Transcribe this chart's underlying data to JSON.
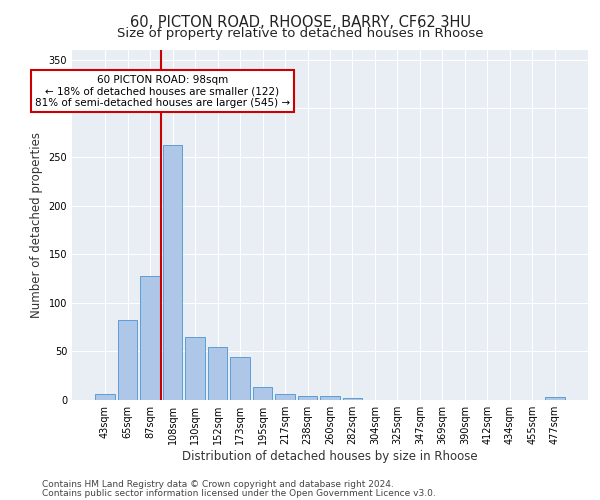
{
  "title1": "60, PICTON ROAD, RHOOSE, BARRY, CF62 3HU",
  "title2": "Size of property relative to detached houses in Rhoose",
  "xlabel": "Distribution of detached houses by size in Rhoose",
  "ylabel": "Number of detached properties",
  "footer1": "Contains HM Land Registry data © Crown copyright and database right 2024.",
  "footer2": "Contains public sector information licensed under the Open Government Licence v3.0.",
  "categories": [
    "43sqm",
    "65sqm",
    "87sqm",
    "108sqm",
    "130sqm",
    "152sqm",
    "173sqm",
    "195sqm",
    "217sqm",
    "238sqm",
    "260sqm",
    "282sqm",
    "304sqm",
    "325sqm",
    "347sqm",
    "369sqm",
    "390sqm",
    "412sqm",
    "434sqm",
    "455sqm",
    "477sqm"
  ],
  "bar_values": [
    6,
    82,
    128,
    262,
    65,
    55,
    44,
    13,
    6,
    4,
    4,
    2,
    0,
    0,
    0,
    0,
    0,
    0,
    0,
    0,
    3
  ],
  "bar_color": "#aec6e8",
  "bar_edge_color": "#5a9fd4",
  "vline_color": "#cc0000",
  "annotation_text": "60 PICTON ROAD: 98sqm\n← 18% of detached houses are smaller (122)\n81% of semi-detached houses are larger (545) →",
  "annotation_box_color": "#cc0000",
  "ylim": [
    0,
    360
  ],
  "yticks": [
    0,
    50,
    100,
    150,
    200,
    250,
    300,
    350
  ],
  "background_color": "#e8eef4",
  "grid_color": "#ffffff",
  "title_fontsize": 10.5,
  "subtitle_fontsize": 9.5,
  "xlabel_fontsize": 8.5,
  "ylabel_fontsize": 8.5,
  "tick_fontsize": 7,
  "footer_fontsize": 6.5,
  "annotation_fontsize": 7.5
}
